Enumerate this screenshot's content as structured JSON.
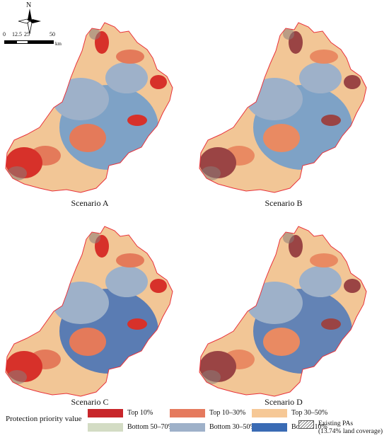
{
  "north_label": "N",
  "scale": {
    "ticks": [
      "0",
      "12.5",
      "25",
      "50"
    ],
    "unit": "km"
  },
  "panels": [
    {
      "caption": "Scenario A",
      "base": "#6a9bcf",
      "accent1": "#d7312a",
      "accent2": "#e47a5a",
      "accent3": "#f5c491"
    },
    {
      "caption": "Scenario B",
      "base": "#6a9bcf",
      "accent1": "#9a4444",
      "accent2": "#e98a62",
      "accent3": "#f2c696"
    },
    {
      "caption": "Scenario C",
      "base": "#3f6fb8",
      "accent1": "#d7312a",
      "accent2": "#e47a5a",
      "accent3": "#f5c491"
    },
    {
      "caption": "Scenario D",
      "base": "#4a77bb",
      "accent1": "#9a4444",
      "accent2": "#e98a62",
      "accent3": "#f2c696"
    }
  ],
  "legend": {
    "title": "Protection priority value",
    "items": [
      {
        "label": "Top 10%",
        "color": "#c8262a"
      },
      {
        "label": "Top 10–30%",
        "color": "#e57a5e"
      },
      {
        "label": "Top 30–50%",
        "color": "#f6c896"
      },
      {
        "label": "Bottom 50–70%",
        "color": "#d3dcc4"
      },
      {
        "label": "Bottom 30–50%",
        "color": "#9eb1c9"
      },
      {
        "label": "Bottom 10%",
        "color": "#3a6bb4"
      }
    ],
    "pa_label_line1": "Existing PAs",
    "pa_label_line2": "(13.74% land coverage)"
  }
}
